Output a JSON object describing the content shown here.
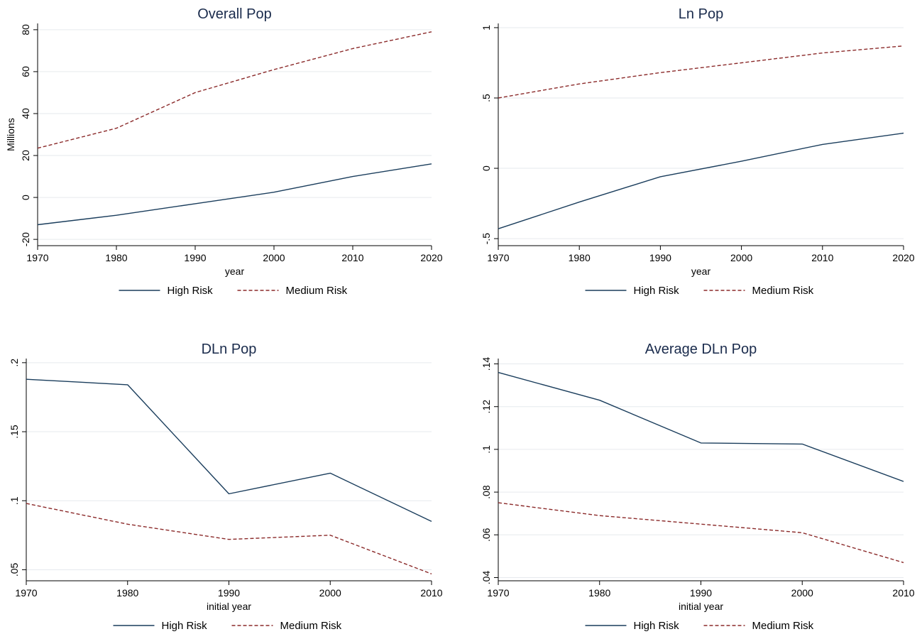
{
  "colors": {
    "high_risk": "#1a3d5c",
    "medium_risk": "#8b2a2a",
    "grid": "#e6eaee",
    "title": "#1a2b4c"
  },
  "chart_data": [
    {
      "type": "line",
      "title": "Overall Pop",
      "xlabel": "year",
      "ylabel": "Millions",
      "x": [
        1970,
        1980,
        1990,
        2000,
        2010,
        2020
      ],
      "series": [
        {
          "name": "High Risk",
          "style": "solid",
          "values": [
            -13,
            -8.5,
            -3,
            2.5,
            10,
            16
          ]
        },
        {
          "name": "Medium Risk",
          "style": "dashed",
          "values": [
            23.5,
            33,
            50,
            61,
            71,
            79
          ]
        }
      ],
      "xlim": [
        1970,
        2020
      ],
      "ylim": [
        -23,
        83
      ],
      "xticks": [
        1970,
        1980,
        1990,
        2000,
        2010,
        2020
      ],
      "xtick_labels": [
        "1970",
        "1980",
        "1990",
        "2000",
        "2010",
        "2020"
      ],
      "yticks": [
        -20,
        0,
        20,
        40,
        60,
        80
      ],
      "ytick_labels": [
        "-20",
        "0",
        "20",
        "40",
        "60",
        "80"
      ],
      "grid": true,
      "legend": "bottom"
    },
    {
      "type": "line",
      "title": "Ln Pop",
      "xlabel": "year",
      "ylabel": "",
      "x": [
        1970,
        1980,
        1990,
        2000,
        2010,
        2020
      ],
      "series": [
        {
          "name": "High Risk",
          "style": "solid",
          "values": [
            -0.43,
            -0.24,
            -0.06,
            0.05,
            0.17,
            0.25
          ]
        },
        {
          "name": "Medium Risk",
          "style": "dashed",
          "values": [
            0.5,
            0.6,
            0.68,
            0.75,
            0.82,
            0.87
          ]
        }
      ],
      "xlim": [
        1970,
        2020
      ],
      "ylim": [
        -0.55,
        1.03
      ],
      "xticks": [
        1970,
        1980,
        1990,
        2000,
        2010,
        2020
      ],
      "xtick_labels": [
        "1970",
        "1980",
        "1990",
        "2000",
        "2010",
        "2020"
      ],
      "yticks": [
        -0.5,
        0,
        0.5,
        1
      ],
      "ytick_labels": [
        "-.5",
        "0",
        ".5",
        "1"
      ],
      "grid": true,
      "legend": "bottom"
    },
    {
      "type": "line",
      "title": "DLn Pop",
      "xlabel": "initial year",
      "ylabel": "",
      "x": [
        1970,
        1980,
        1990,
        2000,
        2010
      ],
      "series": [
        {
          "name": "High Risk",
          "style": "solid",
          "values": [
            0.188,
            0.184,
            0.105,
            0.12,
            0.085
          ]
        },
        {
          "name": "Medium Risk",
          "style": "dashed",
          "values": [
            0.098,
            0.083,
            0.072,
            0.075,
            0.047
          ]
        }
      ],
      "xlim": [
        1970,
        2010
      ],
      "ylim": [
        0.042,
        0.203
      ],
      "xticks": [
        1970,
        1980,
        1990,
        2000,
        2010
      ],
      "xtick_labels": [
        "1970",
        "1980",
        "1990",
        "2000",
        "2010"
      ],
      "yticks": [
        0.05,
        0.1,
        0.15,
        0.2
      ],
      "ytick_labels": [
        ".05",
        ".1",
        ".15",
        ".2"
      ],
      "grid": true,
      "legend": "bottom"
    },
    {
      "type": "line",
      "title": "Average DLn Pop",
      "xlabel": "initial year",
      "ylabel": "",
      "x": [
        1970,
        1980,
        1990,
        2000,
        2010
      ],
      "series": [
        {
          "name": "High Risk",
          "style": "solid",
          "values": [
            0.136,
            0.123,
            0.103,
            0.1025,
            0.085
          ]
        },
        {
          "name": "Medium Risk",
          "style": "dashed",
          "values": [
            0.075,
            0.069,
            0.065,
            0.061,
            0.047
          ]
        }
      ],
      "xlim": [
        1970,
        2010
      ],
      "ylim": [
        0.0385,
        0.1425
      ],
      "xticks": [
        1970,
        1980,
        1990,
        2000,
        2010
      ],
      "xtick_labels": [
        "1970",
        "1980",
        "1990",
        "2000",
        "2010"
      ],
      "yticks": [
        0.04,
        0.06,
        0.08,
        0.1,
        0.12,
        0.14
      ],
      "ytick_labels": [
        ".04",
        ".06",
        ".08",
        ".1",
        ".12",
        ".14"
      ],
      "grid": true,
      "legend": "bottom"
    }
  ]
}
